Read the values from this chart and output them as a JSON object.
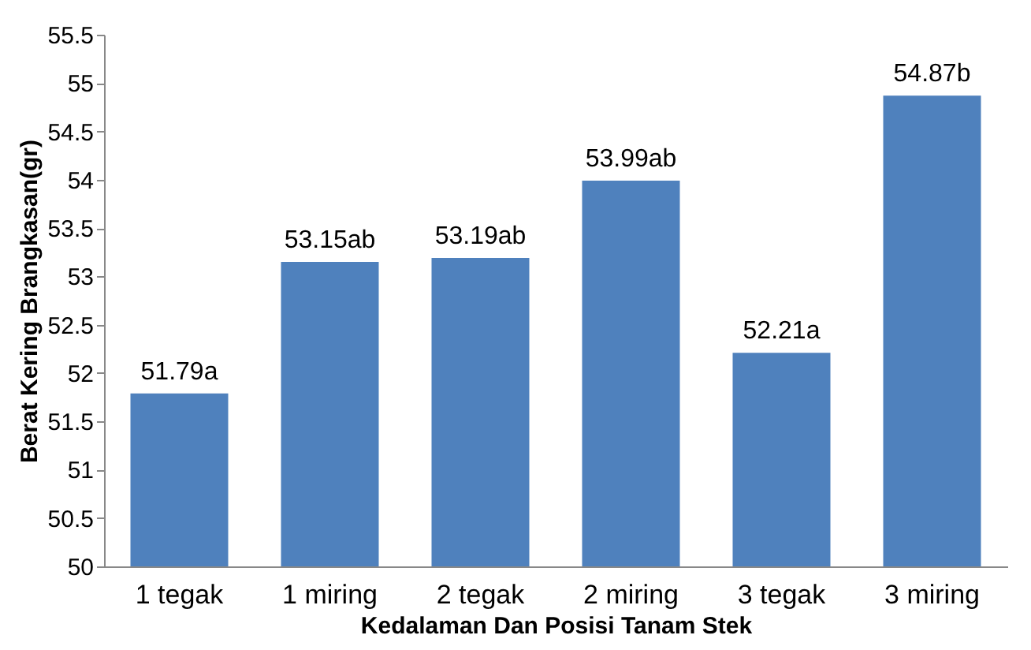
{
  "chart_data": {
    "type": "bar",
    "xlabel": "Kedalaman Dan Posisi Tanam Stek",
    "ylabel": "Berat Kering Brangkasan(gr)",
    "categories": [
      "1 tegak",
      "1 miring",
      "2 tegak",
      "2 miring",
      "3 tegak",
      "3 miring"
    ],
    "values": [
      51.79,
      53.15,
      53.19,
      53.99,
      52.21,
      54.87
    ],
    "value_labels": [
      "51.79a",
      "53.15ab",
      "53.19ab",
      "53.99ab",
      "52.21a",
      "54.87b"
    ],
    "color": "#4f81bd",
    "ylim": [
      50,
      55.5
    ],
    "yticks": [
      50,
      50.5,
      51,
      51.5,
      52,
      52.5,
      53,
      53.5,
      54,
      54.5,
      55,
      55.5
    ],
    "grid": false
  }
}
